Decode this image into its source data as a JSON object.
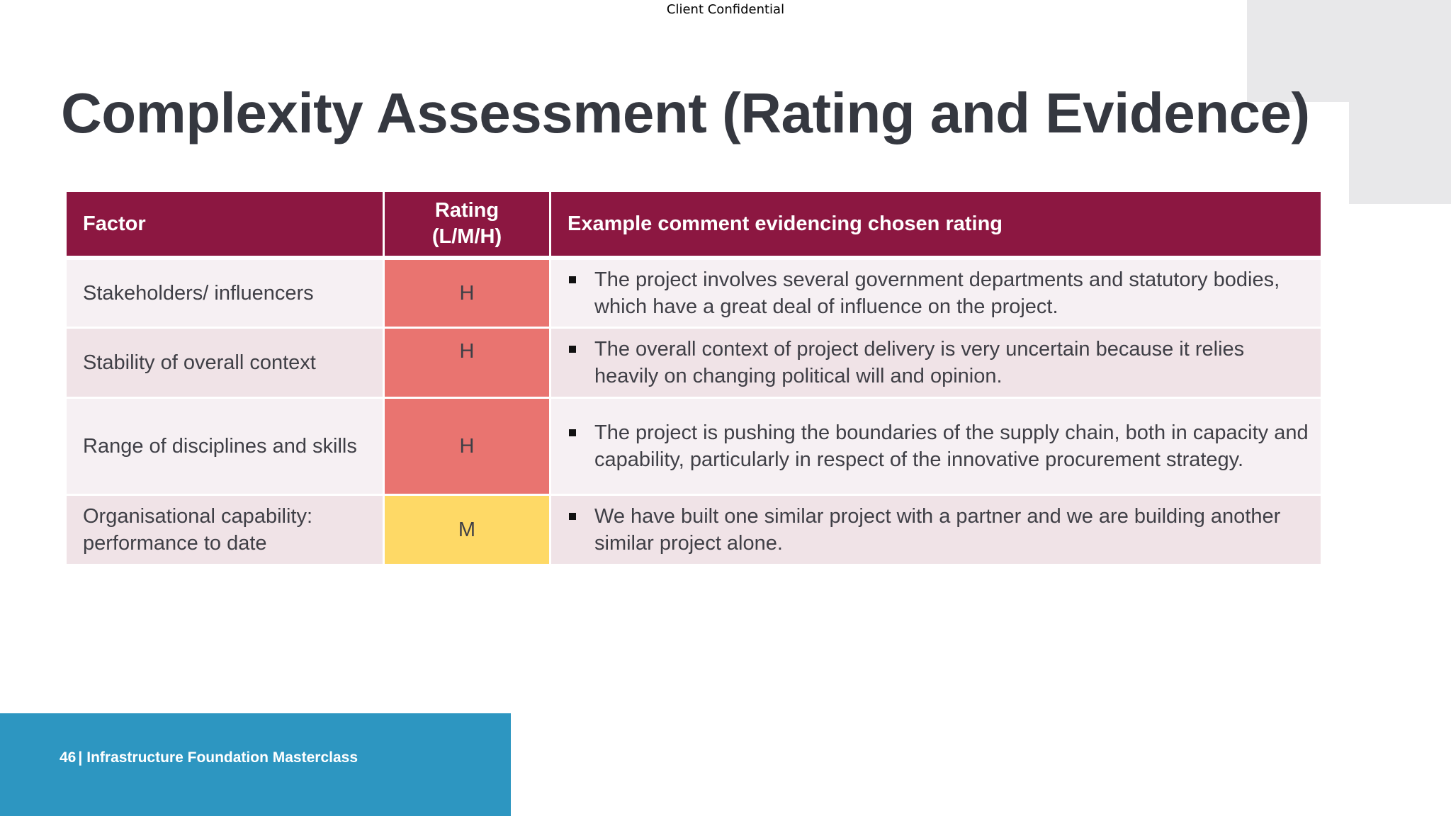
{
  "header": {
    "confidential_label": "Client Confidential"
  },
  "slide": {
    "title": "Complexity Assessment (Rating and Evidence)"
  },
  "table": {
    "columns": {
      "factor": "Factor",
      "rating_line1": "Rating",
      "rating_line2": "(L/M/H)",
      "comment": "Example comment evidencing chosen rating"
    },
    "rows": [
      {
        "factor": "Stakeholders/ influencers",
        "rating": "H",
        "comment": "The project involves several government departments and statutory bodies, which have a great deal of influence on the project."
      },
      {
        "factor": "Stability of overall context",
        "rating": "H",
        "comment": "The overall context of project delivery is very uncertain because it relies heavily on changing political will and opinion."
      },
      {
        "factor": "Range of disciplines and skills",
        "rating": "H",
        "comment": "The project is pushing the boundaries of the supply chain, both in capacity and capability, particularly in respect of the innovative procurement strategy."
      },
      {
        "factor": "Organisational capability: performance to date",
        "rating": "M",
        "comment": "We have built one similar project with a partner and we are building another similar project alone."
      }
    ],
    "colors": {
      "header_bg": "#8c1741",
      "rating_high": "#e97470",
      "rating_medium": "#fed966"
    }
  },
  "footer": {
    "page_number": "46",
    "separator": "|",
    "course_name": "Infrastructure Foundation Masterclass",
    "color": "#2d96c1"
  }
}
